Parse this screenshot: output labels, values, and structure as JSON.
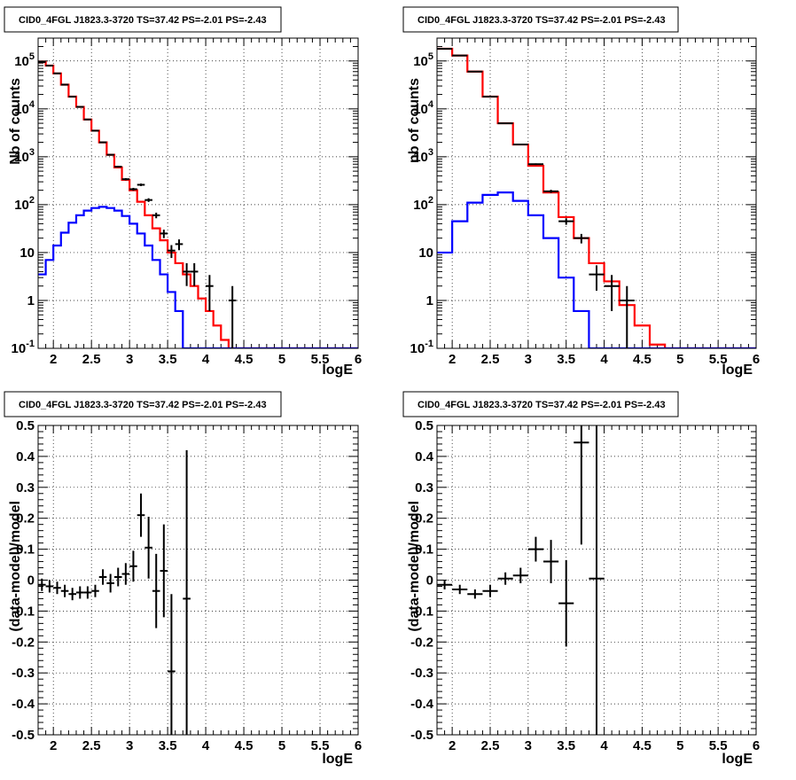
{
  "chart_data": [
    {
      "type": "line",
      "title": "CID0_4FGL J1823.3-3720 TS=37.42 PS=-2.01 PS=-2.43",
      "xlabel": "logE",
      "ylabel": "Nb of counts",
      "yscale": "log",
      "xlim": [
        1.8,
        6.0
      ],
      "ylim": [
        0.1,
        300000
      ],
      "grid": true,
      "x_ticks": [
        "2",
        "2.5",
        "3",
        "3.5",
        "4",
        "4.5",
        "5",
        "5.5",
        "6"
      ],
      "x_tick_values": [
        2,
        2.5,
        3,
        3.5,
        4,
        4.5,
        5,
        5.5,
        6
      ],
      "y_ticks": [
        "10^-1",
        "1",
        "10",
        "10^2",
        "10^3",
        "10^4",
        "10^5"
      ],
      "y_tick_values": [
        0.1,
        1,
        10,
        100,
        1000,
        10000,
        100000
      ],
      "bin_width": 0.1,
      "series": [
        {
          "color": "#ff0000",
          "style": "histogram",
          "bin_low": [
            1.8,
            1.9,
            2.0,
            2.1,
            2.2,
            2.3,
            2.4,
            2.5,
            2.6,
            2.7,
            2.8,
            2.9,
            3.0,
            3.1,
            3.2,
            3.3,
            3.4,
            3.5,
            3.6,
            3.7,
            3.8,
            3.9,
            4.0,
            4.1,
            4.2,
            4.3,
            4.4,
            4.5,
            4.6,
            4.7,
            4.8,
            4.9,
            5.0,
            5.1,
            5.2,
            5.3,
            5.4,
            5.5,
            5.6,
            5.7,
            5.8,
            5.9
          ],
          "values": [
            95000,
            80000,
            55000,
            32000,
            18000,
            11000,
            6000,
            3500,
            2000,
            1100,
            600,
            330,
            200,
            115,
            60,
            32,
            18,
            10,
            6,
            3.5,
            2,
            1.1,
            0.6,
            0.3,
            0.15,
            0.1,
            0.1,
            0.1,
            0.1,
            0.1,
            0.1,
            0.1,
            0.1,
            0.1,
            0.1,
            0.1,
            0.1,
            0.1,
            0.1,
            0.1,
            0.1,
            0.1
          ]
        },
        {
          "color": "#0000ff",
          "style": "histogram",
          "bin_low": [
            1.8,
            1.9,
            2.0,
            2.1,
            2.2,
            2.3,
            2.4,
            2.5,
            2.6,
            2.7,
            2.8,
            2.9,
            3.0,
            3.1,
            3.2,
            3.3,
            3.4,
            3.5,
            3.6,
            3.7,
            3.8,
            3.9,
            4.0,
            4.1,
            4.2,
            4.3,
            4.4,
            4.5,
            4.6,
            4.7,
            4.8,
            4.9,
            5.0,
            5.1,
            5.2,
            5.3,
            5.4,
            5.5,
            5.6,
            5.7,
            5.8,
            5.9
          ],
          "values": [
            3.5,
            7,
            14,
            26,
            42,
            60,
            75,
            85,
            90,
            85,
            75,
            58,
            40,
            25,
            14,
            7,
            3.5,
            1.5,
            0.6,
            0.1,
            0.1,
            0.1,
            0.1,
            0.1,
            0.1,
            0.1,
            0.1,
            0.1,
            0.1,
            0.1,
            0.1,
            0.1,
            0.1,
            0.1,
            0.1,
            0.1,
            0.1,
            0.1,
            0.1,
            0.1,
            0.1,
            0.1
          ]
        },
        {
          "color": "#000000",
          "style": "points",
          "x": [
            1.85,
            1.95,
            2.05,
            2.15,
            2.25,
            2.35,
            2.45,
            2.55,
            2.65,
            2.75,
            2.85,
            2.95,
            3.05,
            3.15,
            3.25,
            3.35,
            3.45,
            3.55,
            3.65,
            3.75,
            3.85,
            4.05,
            4.35
          ],
          "values": [
            95000,
            80000,
            55000,
            32000,
            18000,
            11000,
            6000,
            3500,
            2000,
            1100,
            620,
            340,
            210,
            260,
            125,
            60,
            25,
            11,
            15,
            4,
            4,
            2,
            1
          ],
          "err_low": [
            300,
            280,
            230,
            180,
            130,
            100,
            75,
            60,
            45,
            33,
            25,
            18,
            14,
            16,
            11,
            8,
            5,
            3.3,
            3.8,
            2,
            2,
            1.4,
            1
          ],
          "err_high": [
            300,
            280,
            230,
            180,
            130,
            100,
            75,
            60,
            45,
            33,
            25,
            18,
            14,
            16,
            11,
            8,
            5,
            3.3,
            3.8,
            2,
            2,
            1.4,
            1
          ]
        }
      ]
    },
    {
      "type": "line",
      "title": "CID0_4FGL J1823.3-3720 TS=37.42 PS=-2.01 PS=-2.43",
      "xlabel": "logE",
      "ylabel": "nb of counts",
      "yscale": "log",
      "xlim": [
        1.8,
        6.0
      ],
      "ylim": [
        0.1,
        300000
      ],
      "grid": true,
      "x_ticks": [
        "2",
        "2.5",
        "3",
        "3.5",
        "4",
        "4.5",
        "5",
        "5.5",
        "6"
      ],
      "x_tick_values": [
        2,
        2.5,
        3,
        3.5,
        4,
        4.5,
        5,
        5.5,
        6
      ],
      "y_ticks": [
        "10^-1",
        "1",
        "10",
        "10^2",
        "10^3",
        "10^4",
        "10^5"
      ],
      "y_tick_values": [
        0.1,
        1,
        10,
        100,
        1000,
        10000,
        100000
      ],
      "bin_width": 0.2,
      "series": [
        {
          "color": "#ff0000",
          "style": "histogram",
          "bin_low": [
            1.8,
            2.0,
            2.2,
            2.4,
            2.6,
            2.8,
            3.0,
            3.2,
            3.4,
            3.6,
            3.8,
            4.0,
            4.2,
            4.4,
            4.6,
            4.8,
            5.0,
            5.2,
            5.4,
            5.6,
            5.8
          ],
          "values": [
            180000,
            130000,
            60000,
            18000,
            5000,
            1800,
            650,
            180,
            55,
            20,
            6,
            2.5,
            0.8,
            0.3,
            0.12,
            0.1,
            0.1,
            0.1,
            0.1,
            0.1,
            0.1
          ]
        },
        {
          "color": "#0000ff",
          "style": "histogram",
          "bin_low": [
            1.8,
            2.0,
            2.2,
            2.4,
            2.6,
            2.8,
            3.0,
            3.2,
            3.4,
            3.6,
            3.8,
            4.0,
            4.2,
            4.4,
            4.6,
            4.8,
            5.0,
            5.2,
            5.4,
            5.6,
            5.8
          ],
          "values": [
            10,
            45,
            110,
            160,
            180,
            120,
            60,
            20,
            3,
            0.6,
            0.1,
            0.1,
            0.1,
            0.1,
            0.1,
            0.1,
            0.1,
            0.1,
            0.1,
            0.1,
            0.1
          ]
        },
        {
          "color": "#000000",
          "style": "points",
          "x": [
            1.9,
            2.1,
            2.3,
            2.5,
            2.7,
            2.9,
            3.1,
            3.3,
            3.5,
            3.7,
            3.9,
            4.1,
            4.3
          ],
          "values": [
            180000,
            130000,
            60000,
            18000,
            5000,
            1800,
            700,
            190,
            45,
            20,
            3.5,
            2,
            1
          ],
          "err_low": [
            420,
            360,
            240,
            130,
            70,
            42,
            26,
            14,
            7,
            4.5,
            1.9,
            1.4,
            1
          ],
          "err_high": [
            420,
            360,
            240,
            130,
            70,
            42,
            26,
            14,
            7,
            4.5,
            1.9,
            1.4,
            1
          ]
        }
      ]
    },
    {
      "type": "scatter",
      "title": "CID0_4FGL J1823.3-3720 TS=37.42 PS=-2.01 PS=-2.43",
      "xlabel": "logE",
      "ylabel": "(data-model)/model",
      "xlim": [
        1.8,
        6.0
      ],
      "ylim": [
        -0.5,
        0.5
      ],
      "grid": true,
      "x_ticks": [
        "2",
        "2.5",
        "3",
        "3.5",
        "4",
        "4.5",
        "5",
        "5.5",
        "6"
      ],
      "x_tick_values": [
        2,
        2.5,
        3,
        3.5,
        4,
        4.5,
        5,
        5.5,
        6
      ],
      "y_ticks": [
        "-0.5",
        "-0.4",
        "-0.3",
        "-0.2",
        "-0.1",
        "0",
        "0.1",
        "0.2",
        "0.3",
        "0.4",
        "0.5"
      ],
      "y_tick_values": [
        -0.5,
        -0.4,
        -0.3,
        -0.2,
        -0.1,
        0,
        0.1,
        0.2,
        0.3,
        0.4,
        0.5
      ],
      "bin_width": 0.1,
      "series": [
        {
          "color": "#000000",
          "style": "points",
          "x": [
            1.85,
            1.95,
            2.05,
            2.15,
            2.25,
            2.35,
            2.45,
            2.55,
            2.65,
            2.75,
            2.85,
            2.95,
            3.05,
            3.15,
            3.25,
            3.35,
            3.45,
            3.55,
            3.75
          ],
          "values": [
            -0.015,
            -0.02,
            -0.025,
            -0.035,
            -0.045,
            -0.04,
            -0.04,
            -0.035,
            0.01,
            -0.01,
            0.01,
            0.02,
            0.045,
            0.21,
            0.105,
            -0.035,
            0.03,
            -0.295,
            -0.06
          ],
          "err_low": [
            0.02,
            0.02,
            0.02,
            0.02,
            0.02,
            0.02,
            0.02,
            0.02,
            0.025,
            0.03,
            0.03,
            0.035,
            0.05,
            0.07,
            0.1,
            0.12,
            0.15,
            0.25,
            0.45
          ],
          "err_high": [
            0.02,
            0.02,
            0.02,
            0.02,
            0.02,
            0.02,
            0.02,
            0.02,
            0.025,
            0.03,
            0.03,
            0.035,
            0.05,
            0.07,
            0.1,
            0.12,
            0.15,
            0.25,
            0.48
          ]
        }
      ]
    },
    {
      "type": "scatter",
      "title": "CID0_4FGL J1823.3-3720 TS=37.42 PS=-2.01 PS=-2.43",
      "xlabel": "logE",
      "ylabel": "(data-model)/model",
      "xlim": [
        1.8,
        6.0
      ],
      "ylim": [
        -0.5,
        0.5
      ],
      "grid": true,
      "x_ticks": [
        "2",
        "2.5",
        "3",
        "3.5",
        "4",
        "4.5",
        "5",
        "5.5",
        "6"
      ],
      "x_tick_values": [
        2,
        2.5,
        3,
        3.5,
        4,
        4.5,
        5,
        5.5,
        6
      ],
      "y_ticks": [
        "-0.5",
        "-0.4",
        "-0.3",
        "-0.2",
        "-0.1",
        "0",
        "0.1",
        "0.2",
        "0.3",
        "0.4",
        "0.5"
      ],
      "y_tick_values": [
        -0.5,
        -0.4,
        -0.3,
        -0.2,
        -0.1,
        0,
        0.1,
        0.2,
        0.3,
        0.4,
        0.5
      ],
      "bin_width": 0.2,
      "series": [
        {
          "color": "#000000",
          "style": "points",
          "x": [
            1.9,
            2.1,
            2.3,
            2.5,
            2.7,
            2.9,
            3.1,
            3.3,
            3.5,
            3.7,
            3.9
          ],
          "values": [
            -0.015,
            -0.03,
            -0.045,
            -0.035,
            0.005,
            0.015,
            0.1,
            0.06,
            -0.075,
            0.445,
            0.005
          ],
          "err_low": [
            0.015,
            0.015,
            0.015,
            0.02,
            0.02,
            0.025,
            0.04,
            0.07,
            0.14,
            0.33,
            0.6
          ],
          "err_high": [
            0.015,
            0.015,
            0.015,
            0.02,
            0.02,
            0.025,
            0.04,
            0.07,
            0.14,
            0.33,
            0.6
          ]
        }
      ]
    }
  ]
}
